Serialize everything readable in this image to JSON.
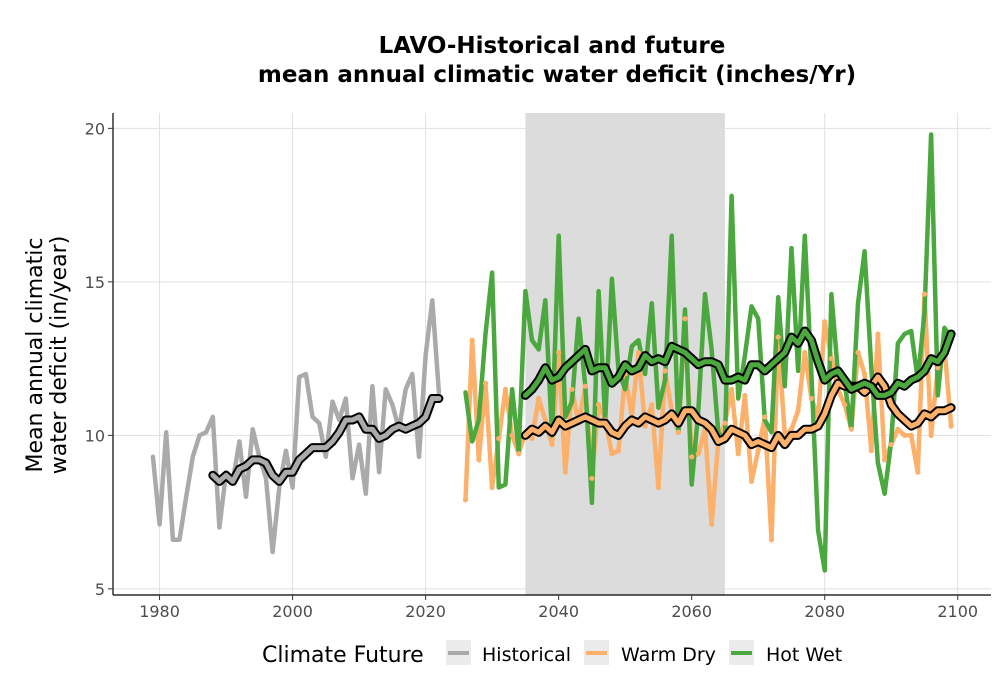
{
  "chart_data": {
    "type": "line",
    "title_line1": "LAVO-Historical and future",
    "title_line2": "mean annual climatic water deficit (inches/Yr)",
    "ylabel_line1": "Mean annual climatic",
    "ylabel_line2": "water deficit (in/year)",
    "xlabel": "",
    "xlim": [
      1973,
      2105
    ],
    "ylim": [
      4.8,
      20.5
    ],
    "x_ticks": [
      1980,
      2000,
      2020,
      2040,
      2060,
      2080,
      2100
    ],
    "y_ticks": [
      5,
      10,
      15,
      20
    ],
    "grid": true,
    "shaded_period": [
      2035,
      2065
    ],
    "legend": {
      "title": "Climate Future",
      "placement": "bottom",
      "entries": [
        "Historical",
        "Warm Dry",
        "Hot Wet"
      ]
    },
    "colors": {
      "Historical": "#aaaaaa",
      "Warm Dry": "#fdb06a",
      "Hot Wet": "#4aa83e",
      "smooth_outline": "#000000",
      "shade": "#dcdcdc",
      "grid": "#e0e0e0",
      "axis": "#000000"
    },
    "series": [
      {
        "name": "Historical",
        "x": [
          1979,
          1980,
          1981,
          1982,
          1983,
          1984,
          1985,
          1986,
          1987,
          1988,
          1989,
          1990,
          1991,
          1992,
          1993,
          1994,
          1995,
          1996,
          1997,
          1998,
          1999,
          2000,
          2001,
          2002,
          2003,
          2004,
          2005,
          2006,
          2007,
          2008,
          2009,
          2010,
          2011,
          2012,
          2013,
          2014,
          2015,
          2016,
          2017,
          2018,
          2019,
          2020,
          2021,
          2022
        ],
        "values": [
          9.3,
          7.1,
          10.1,
          6.6,
          6.6,
          8.0,
          9.3,
          10.0,
          10.1,
          10.6,
          7.0,
          8.8,
          8.5,
          9.8,
          8.0,
          10.2,
          9.3,
          8.6,
          6.2,
          8.3,
          9.5,
          8.3,
          11.9,
          12.0,
          10.6,
          10.4,
          9.3,
          11.1,
          10.5,
          11.2,
          8.6,
          9.7,
          8.1,
          11.6,
          8.8,
          11.5,
          11.0,
          10.2,
          11.5,
          12.0,
          9.3,
          12.6,
          14.4,
          11.4
        ]
      },
      {
        "name": "Historical smooth",
        "x": [
          1988,
          1989,
          1990,
          1991,
          1992,
          1993,
          1994,
          1995,
          1996,
          1997,
          1998,
          1999,
          2000,
          2001,
          2002,
          2003,
          2004,
          2005,
          2006,
          2007,
          2008,
          2009,
          2010,
          2011,
          2012,
          2013,
          2014,
          2015,
          2016,
          2017,
          2018,
          2019,
          2020,
          2021,
          2022
        ],
        "values": [
          8.7,
          8.5,
          8.7,
          8.5,
          8.9,
          9.0,
          9.2,
          9.2,
          9.1,
          8.7,
          8.5,
          8.8,
          8.8,
          9.2,
          9.4,
          9.6,
          9.6,
          9.6,
          9.8,
          10.1,
          10.5,
          10.5,
          10.6,
          10.2,
          10.2,
          9.9,
          10.0,
          10.2,
          10.3,
          10.2,
          10.3,
          10.4,
          10.6,
          11.2,
          11.2
        ]
      },
      {
        "name": "Warm Dry",
        "x": [
          2026,
          2027,
          2028,
          2029,
          2030,
          2031,
          2032,
          2033,
          2034,
          2035,
          2036,
          2037,
          2038,
          2039,
          2040,
          2041,
          2042,
          2043,
          2044,
          2045,
          2046,
          2047,
          2048,
          2049,
          2050,
          2051,
          2052,
          2053,
          2054,
          2055,
          2056,
          2057,
          2058,
          2059,
          2060,
          2061,
          2062,
          2063,
          2064,
          2065,
          2066,
          2067,
          2068,
          2069,
          2070,
          2071,
          2072,
          2073,
          2074,
          2075,
          2076,
          2077,
          2078,
          2079,
          2080,
          2081,
          2082,
          2083,
          2084,
          2085,
          2086,
          2087,
          2088,
          2089,
          2090,
          2091,
          2092,
          2093,
          2094,
          2095,
          2096,
          2097,
          2098,
          2099
        ],
        "values": [
          7.9,
          13.1,
          9.2,
          11.7,
          8.3,
          9.9,
          11.5,
          10.0,
          9.4,
          10.1,
          9.9,
          11.2,
          10.5,
          9.7,
          12.7,
          8.8,
          11.5,
          10.4,
          11.6,
          8.6,
          11.0,
          10.5,
          9.4,
          9.5,
          12.0,
          10.6,
          12.7,
          10.3,
          11.0,
          8.3,
          12.1,
          10.8,
          10.1,
          13.8,
          9.3,
          9.4,
          10.2,
          7.1,
          9.8,
          10.4,
          11.5,
          9.4,
          11.3,
          8.5,
          9.5,
          10.6,
          6.6,
          13.2,
          10.0,
          10.2,
          10.8,
          12.7,
          11.2,
          10.6,
          13.7,
          12.5,
          11.5,
          11.0,
          10.2,
          12.7,
          12.0,
          9.5,
          13.3,
          9.2,
          9.7,
          10.2,
          10.0,
          10.0,
          8.8,
          14.6,
          10.0,
          12.2,
          12.9,
          10.3
        ]
      },
      {
        "name": "Warm Dry smooth",
        "x": [
          2035,
          2036,
          2037,
          2038,
          2039,
          2040,
          2041,
          2042,
          2043,
          2044,
          2045,
          2046,
          2047,
          2048,
          2049,
          2050,
          2051,
          2052,
          2053,
          2054,
          2055,
          2056,
          2057,
          2058,
          2059,
          2060,
          2061,
          2062,
          2063,
          2064,
          2065,
          2066,
          2067,
          2068,
          2069,
          2070,
          2071,
          2072,
          2073,
          2074,
          2075,
          2076,
          2077,
          2078,
          2079,
          2080,
          2081,
          2082,
          2083,
          2084,
          2085,
          2086,
          2087,
          2088,
          2089,
          2090,
          2091,
          2092,
          2093,
          2094,
          2095,
          2096,
          2097,
          2098,
          2099
        ],
        "values": [
          10.0,
          10.2,
          10.1,
          10.3,
          10.1,
          10.5,
          10.3,
          10.4,
          10.5,
          10.6,
          10.5,
          10.4,
          10.4,
          10.1,
          10.0,
          10.3,
          10.5,
          10.4,
          10.6,
          10.5,
          10.4,
          10.5,
          10.7,
          10.4,
          10.8,
          10.8,
          10.5,
          10.4,
          10.2,
          9.8,
          9.9,
          10.2,
          10.1,
          10.0,
          9.7,
          9.8,
          9.7,
          9.6,
          10.0,
          9.7,
          10.0,
          10.0,
          10.2,
          10.2,
          10.3,
          10.7,
          11.3,
          11.7,
          11.6,
          11.6,
          11.6,
          11.4,
          11.6,
          11.9,
          11.6,
          11.0,
          10.7,
          10.5,
          10.3,
          10.4,
          10.7,
          10.6,
          10.8,
          10.8,
          10.9
        ]
      },
      {
        "name": "Hot Wet",
        "x": [
          2026,
          2027,
          2028,
          2029,
          2030,
          2031,
          2032,
          2033,
          2034,
          2035,
          2036,
          2037,
          2038,
          2039,
          2040,
          2041,
          2042,
          2043,
          2044,
          2045,
          2046,
          2047,
          2048,
          2049,
          2050,
          2051,
          2052,
          2053,
          2054,
          2055,
          2056,
          2057,
          2058,
          2059,
          2060,
          2061,
          2062,
          2063,
          2064,
          2065,
          2066,
          2067,
          2068,
          2069,
          2070,
          2071,
          2072,
          2073,
          2074,
          2075,
          2076,
          2077,
          2078,
          2079,
          2080,
          2081,
          2082,
          2083,
          2084,
          2085,
          2086,
          2087,
          2088,
          2089,
          2090,
          2091,
          2092,
          2093,
          2094,
          2095,
          2096,
          2097,
          2098,
          2099
        ],
        "values": [
          11.4,
          9.8,
          10.5,
          13.3,
          15.3,
          8.3,
          8.4,
          11.5,
          9.5,
          14.7,
          13.1,
          12.8,
          14.4,
          10.0,
          16.5,
          10.6,
          11.1,
          13.8,
          11.6,
          7.8,
          14.7,
          10.5,
          15.1,
          12.1,
          11.5,
          12.9,
          13.1,
          12.0,
          14.3,
          10.9,
          11.8,
          16.5,
          10.1,
          14.1,
          8.4,
          10.8,
          14.6,
          12.8,
          10.1,
          9.8,
          17.8,
          11.2,
          12.6,
          14.2,
          13.8,
          10.5,
          10.1,
          14.5,
          11.6,
          16.1,
          12.1,
          16.5,
          12.0,
          6.9,
          5.6,
          14.6,
          12.0,
          11.7,
          10.2,
          14.3,
          16.0,
          12.2,
          9.1,
          8.1,
          9.8,
          13.0,
          13.3,
          13.4,
          11.8,
          14.0,
          19.8,
          11.3,
          13.5,
          13.2
        ]
      },
      {
        "name": "Hot Wet smooth",
        "x": [
          2035,
          2036,
          2037,
          2038,
          2039,
          2040,
          2041,
          2042,
          2043,
          2044,
          2045,
          2046,
          2047,
          2048,
          2049,
          2050,
          2051,
          2052,
          2053,
          2054,
          2055,
          2056,
          2057,
          2058,
          2059,
          2060,
          2061,
          2062,
          2063,
          2064,
          2065,
          2066,
          2067,
          2068,
          2069,
          2070,
          2071,
          2072,
          2073,
          2074,
          2075,
          2076,
          2077,
          2078,
          2079,
          2080,
          2081,
          2082,
          2083,
          2084,
          2085,
          2086,
          2087,
          2088,
          2089,
          2090,
          2091,
          2092,
          2093,
          2094,
          2095,
          2096,
          2097,
          2098,
          2099
        ],
        "values": [
          11.3,
          11.5,
          11.8,
          12.2,
          11.8,
          11.9,
          12.2,
          12.4,
          12.6,
          12.8,
          12.1,
          12.2,
          12.2,
          11.7,
          11.9,
          12.3,
          12.1,
          12.2,
          12.6,
          12.4,
          12.5,
          12.4,
          12.9,
          12.8,
          12.7,
          12.5,
          12.3,
          12.4,
          12.4,
          12.3,
          11.8,
          11.8,
          11.9,
          11.8,
          12.3,
          12.3,
          12.1,
          12.3,
          12.5,
          12.7,
          13.2,
          13.0,
          13.4,
          13.1,
          12.4,
          11.8,
          12.0,
          12.1,
          11.8,
          11.5,
          11.6,
          11.7,
          11.6,
          11.3,
          11.3,
          11.4,
          11.7,
          11.6,
          11.8,
          11.9,
          12.1,
          12.5,
          12.4,
          12.7,
          13.3
        ]
      }
    ]
  }
}
